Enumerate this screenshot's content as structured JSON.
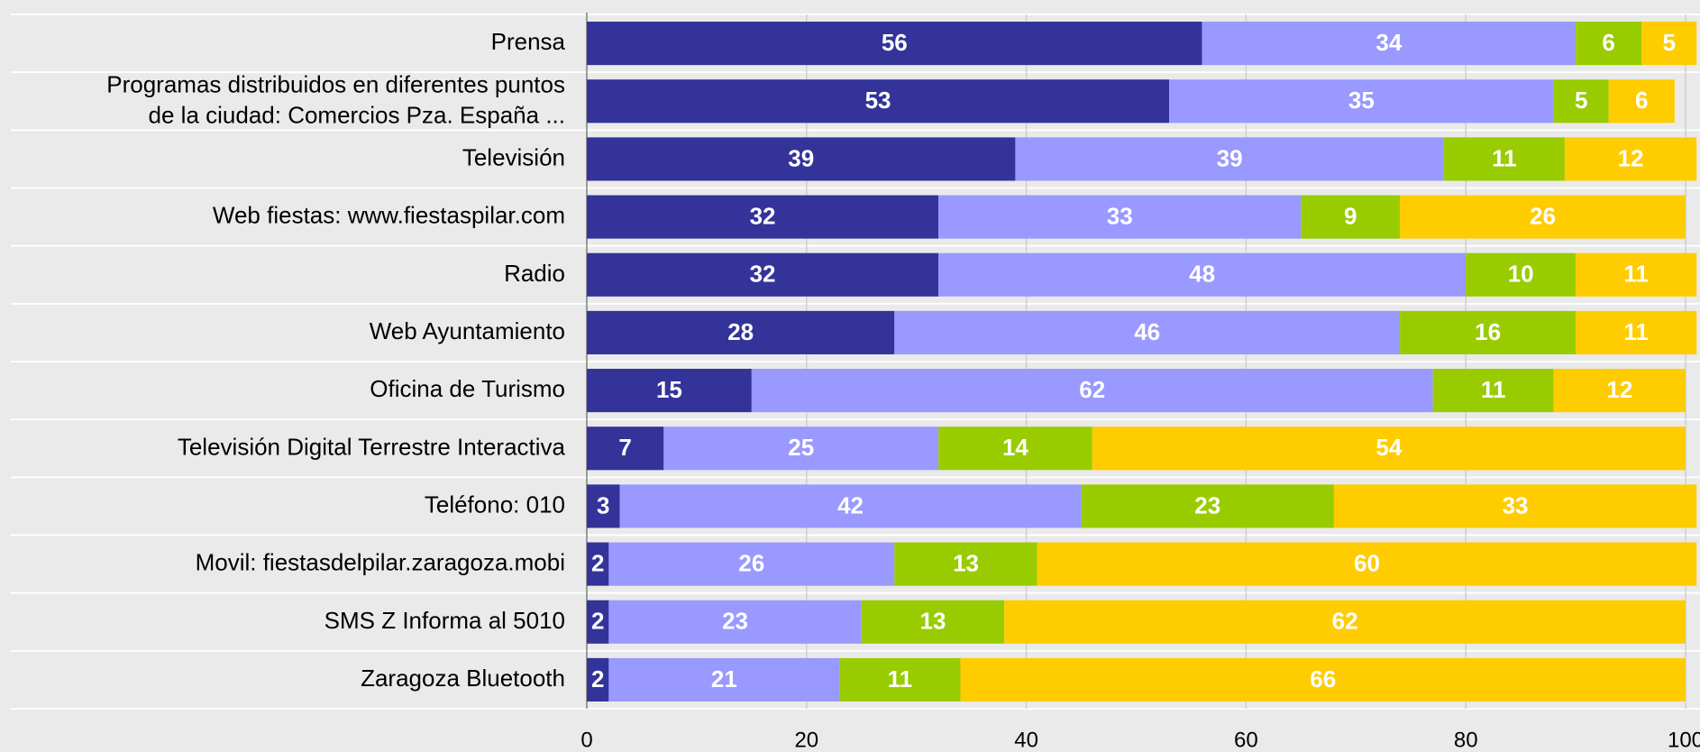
{
  "chart_data": {
    "type": "stacked_barh",
    "categories": [
      "Prensa",
      "Programas distribuidos en diferentes puntos\nde la ciudad: Comercios  Pza. España ...",
      "Televisión",
      "Web fiestas: www.fiestaspilar.com",
      "Radio",
      "Web Ayuntamiento",
      "Oficina de Turismo",
      "Televisión Digital Terrestre Interactiva",
      "Teléfono: 010",
      "Movil: fiestasdelpilar.zaragoza.mobi",
      "SMS Z Informa al 5010",
      "Zaragoza Bluetooth"
    ],
    "series": [
      {
        "color": "#333399",
        "values": [
          56,
          53,
          39,
          32,
          32,
          28,
          15,
          7,
          3,
          2,
          2,
          2
        ]
      },
      {
        "color": "#9999ff",
        "values": [
          34,
          35,
          39,
          33,
          48,
          46,
          62,
          25,
          42,
          26,
          23,
          21
        ]
      },
      {
        "color": "#99cc00",
        "values": [
          6,
          5,
          11,
          9,
          10,
          16,
          11,
          14,
          23,
          13,
          13,
          11
        ]
      },
      {
        "color": "#ffcc00",
        "values": [
          5,
          6,
          12,
          26,
          11,
          11,
          12,
          54,
          33,
          60,
          62,
          66
        ]
      }
    ],
    "xlim": [
      0,
      100
    ],
    "xticks": [
      0,
      20,
      40,
      60,
      80,
      100
    ],
    "grid": true
  }
}
